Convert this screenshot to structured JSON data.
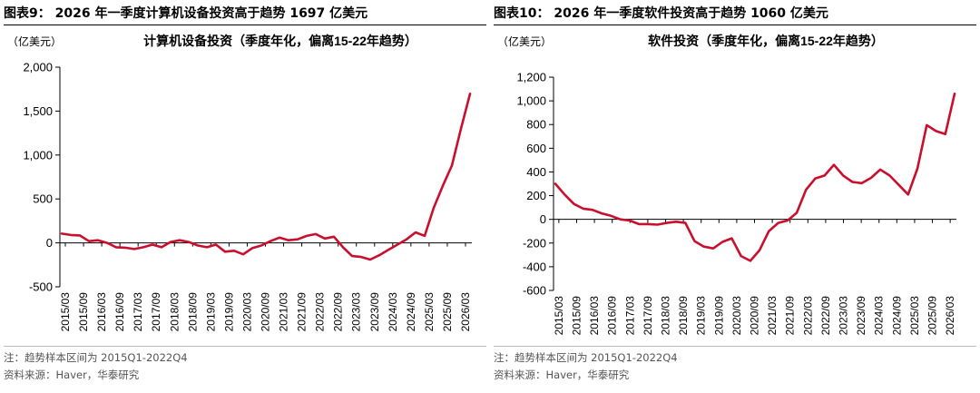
{
  "panels": [
    {
      "figure_title": "图表9： 2026 年一季度计算机设备投资高于趋势 1697 亿美元",
      "note": "注：趋势样本区间为 2015Q1-2022Q4",
      "source": "资料来源：Haver，华泰研究"
    },
    {
      "figure_title": "图表10： 2026 年一季度软件投资高于趋势 1060 亿美元",
      "note": "注：趋势样本区间为 2015Q1-2022Q4",
      "source": "资料来源：Haver，华泰研究"
    }
  ],
  "colors": {
    "line": "#c8102e",
    "axis": "#000000"
  },
  "chart_data": [
    {
      "type": "line",
      "title": "计算机设备投资（季度年化，偏离15-22年趋势）",
      "ylabel": "（亿美元）",
      "ylim": [
        -500,
        2000
      ],
      "yticks": [
        -500,
        0,
        500,
        1000,
        1500,
        2000
      ],
      "ytick_labels": [
        "-500",
        "0",
        "500",
        "1,000",
        "1,500",
        "2,000"
      ],
      "xtick_labels": [
        "2015/03",
        "2015/09",
        "2016/03",
        "2016/09",
        "2017/03",
        "2017/09",
        "2018/03",
        "2018/09",
        "2019/03",
        "2019/09",
        "2020/03",
        "2020/09",
        "2021/03",
        "2021/09",
        "2022/03",
        "2022/09",
        "2023/03",
        "2023/09",
        "2024/03",
        "2024/09",
        "2025/03",
        "2025/09",
        "2026/03"
      ],
      "grid": false,
      "legend": "none",
      "series": [
        {
          "values": [
            105,
            90,
            85,
            20,
            30,
            0,
            -50,
            -55,
            -70,
            -50,
            -20,
            -50,
            10,
            30,
            10,
            -30,
            -50,
            -20,
            -100,
            -90,
            -130,
            -60,
            -30,
            20,
            60,
            30,
            40,
            80,
            100,
            50,
            70,
            -50,
            -150,
            -160,
            -190,
            -140,
            -80,
            -20,
            40,
            120,
            80,
            400,
            650,
            880,
            1300,
            1697
          ]
        }
      ]
    },
    {
      "type": "line",
      "title": "软件投资（季度年化，偏离15-22年趋势）",
      "ylabel": "（亿美元）",
      "ylim": [
        -600,
        1200
      ],
      "yticks": [
        -600,
        -400,
        -200,
        0,
        200,
        400,
        600,
        800,
        1000,
        1200
      ],
      "ytick_labels": [
        "-600",
        "-400",
        "-200",
        "0",
        "200",
        "400",
        "600",
        "800",
        "1,000",
        "1,200"
      ],
      "xtick_labels": [
        "2015/03",
        "2015/09",
        "2016/03",
        "2016/09",
        "2017/03",
        "2017/09",
        "2018/03",
        "2018/09",
        "2019/03",
        "2019/09",
        "2020/03",
        "2020/09",
        "2021/03",
        "2021/09",
        "2022/03",
        "2022/09",
        "2023/03",
        "2023/09",
        "2024/03",
        "2024/09",
        "2025/03",
        "2025/09",
        "2026/03"
      ],
      "grid": false,
      "legend": "none",
      "series": [
        {
          "values": [
            300,
            210,
            130,
            90,
            80,
            50,
            30,
            0,
            -10,
            -40,
            -40,
            -45,
            -30,
            -20,
            -30,
            -185,
            -230,
            -245,
            -190,
            -160,
            -310,
            -350,
            -260,
            -100,
            -30,
            -10,
            55,
            250,
            345,
            370,
            460,
            370,
            315,
            305,
            350,
            420,
            370,
            290,
            210,
            430,
            795,
            745,
            720,
            1060
          ]
        }
      ]
    }
  ]
}
